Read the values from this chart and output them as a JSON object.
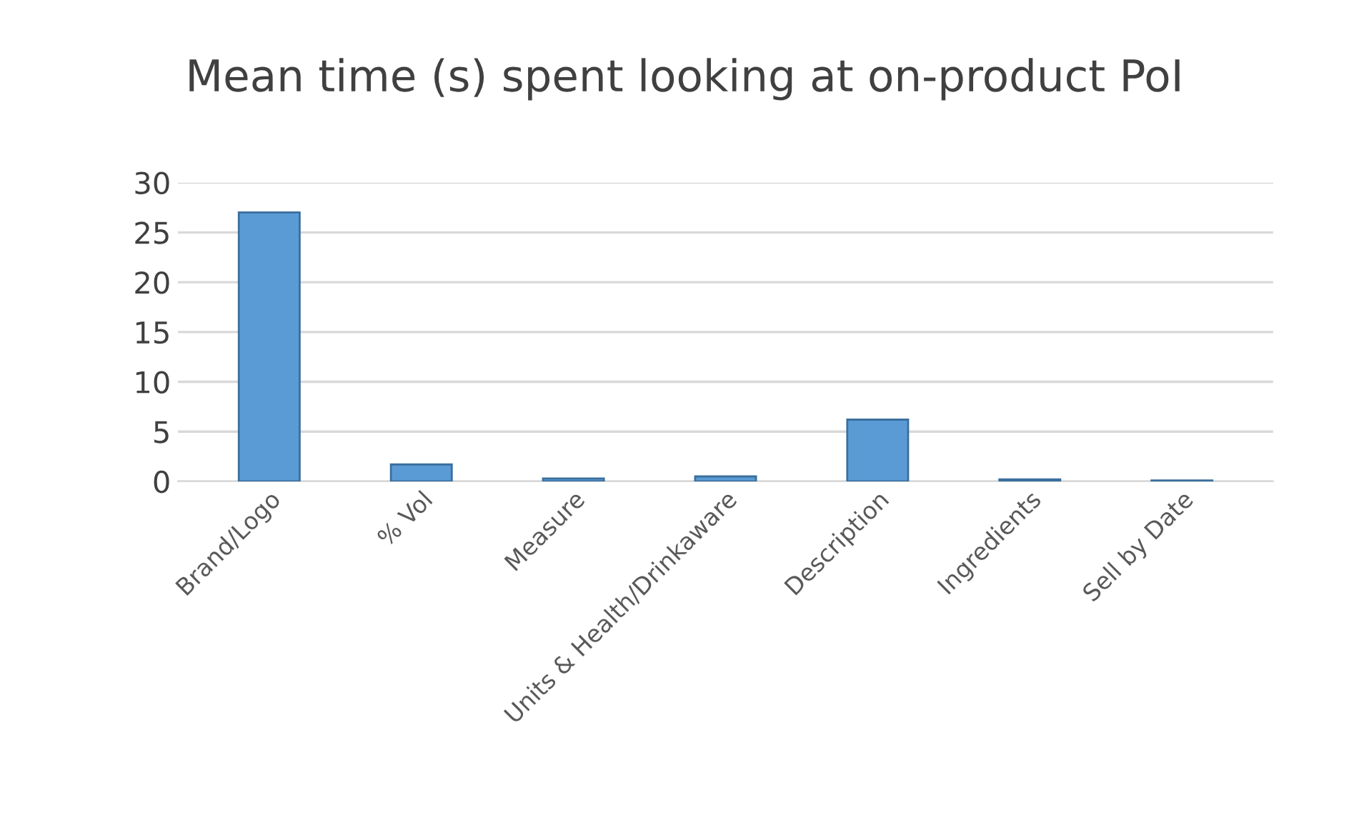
{
  "chart_data": {
    "type": "bar",
    "title": "Mean time (s) spent looking at on-product PoI",
    "categories": [
      "Brand/Logo",
      "% Vol",
      "Measure",
      "Units & Health/Drinkaware",
      "Description",
      "Ingredients",
      "Sell by Date"
    ],
    "values": [
      27,
      1.7,
      0.3,
      0.5,
      6.2,
      0.2,
      0.1
    ],
    "color": "#5b9bd5",
    "ylim": [
      0,
      30
    ],
    "yticks": [
      0,
      5,
      10,
      15,
      20,
      25,
      30
    ],
    "grid": "y"
  }
}
